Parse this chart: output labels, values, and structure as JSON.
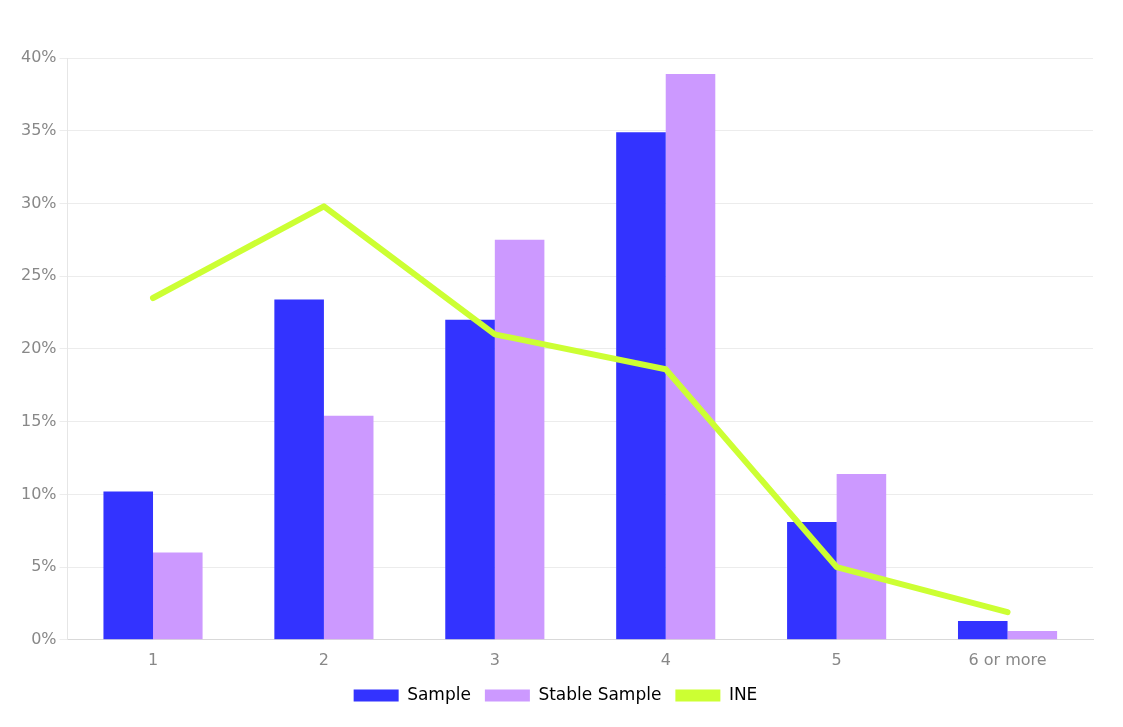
{
  "chart_data": {
    "type": "bar",
    "categories": [
      "1",
      "2",
      "3",
      "4",
      "5",
      "6 or more"
    ],
    "series": [
      {
        "name": "Sample",
        "color": "#3333ff",
        "values": [
          10.2,
          23.4,
          22,
          34.9,
          8.1,
          1.3
        ]
      },
      {
        "name": "Stable Sample",
        "color": "#cc99ff",
        "values": [
          6,
          15.4,
          27.5,
          38.9,
          11.4,
          0.6
        ]
      },
      {
        "name": "INE",
        "type": "line",
        "color": "#ccff33",
        "values": [
          23.5,
          29.8,
          21,
          18.6,
          5,
          1.9
        ]
      }
    ],
    "ylim": [
      0,
      40
    ],
    "yticks": [
      {
        "value": 0,
        "label": "0%"
      },
      {
        "value": 5,
        "label": "5%"
      },
      {
        "value": 10,
        "label": "10%"
      },
      {
        "value": 15,
        "label": "15%"
      },
      {
        "value": 20,
        "label": "20%"
      },
      {
        "value": 25,
        "label": "25%"
      },
      {
        "value": 30,
        "label": "30%"
      },
      {
        "value": 35,
        "label": "35%"
      },
      {
        "value": 40,
        "label": "40%"
      }
    ],
    "grid": "y",
    "legend": "bottom",
    "marker": "none"
  }
}
